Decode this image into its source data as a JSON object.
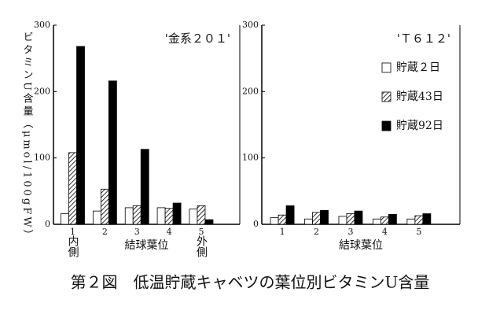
{
  "caption": "第２図　低温貯蔵キャベツの葉位別ビタミンU含量",
  "chart_data": [
    {
      "type": "bar",
      "title": "'金系２０１'",
      "ylabel": "ビタミンU含量（μmol/100gFW）",
      "xlabel": "結球葉位",
      "categories": [
        "1",
        "2",
        "3",
        "4",
        "5"
      ],
      "category_notes": [
        "内側",
        null,
        null,
        null,
        "外側"
      ],
      "ylim": [
        0,
        300
      ],
      "yticks": [
        0,
        100,
        200,
        300
      ],
      "series": [
        {
          "color": "#ffffff",
          "values": [
            16,
            20,
            25,
            25,
            23
          ]
        },
        {
          "color": "#000000",
          "pattern": "hatch",
          "values": [
            108,
            53,
            28,
            24,
            28
          ]
        },
        {
          "color": "#000000",
          "values": [
            268,
            216,
            113,
            32,
            7
          ]
        }
      ]
    },
    {
      "type": "bar",
      "title": "'Ｔ６１２'",
      "xlabel": "結球葉位",
      "categories": [
        "1",
        "2",
        "3",
        "4",
        "5"
      ],
      "ylim": [
        0,
        300
      ],
      "yticks": [
        0,
        100,
        200,
        300
      ],
      "series": [
        {
          "name": "貯蔵２日",
          "color": "#ffffff",
          "values": [
            10,
            8,
            12,
            8,
            8
          ]
        },
        {
          "name": "貯蔵43日",
          "color": "#000000",
          "pattern": "hatch",
          "values": [
            14,
            18,
            16,
            11,
            13
          ]
        },
        {
          "name": "貯蔵92日",
          "color": "#000000",
          "values": [
            28,
            21,
            20,
            15,
            16
          ]
        }
      ]
    }
  ]
}
